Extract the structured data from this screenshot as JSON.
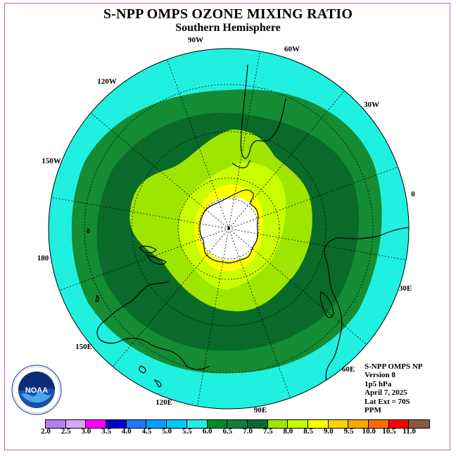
{
  "title": "S-NPP OMPS OZONE MIXING RATIO",
  "subtitle": "Southern Hemisphere",
  "longitude_labels": {
    "lon_90w": "90W",
    "lon_60w": "60W",
    "lon_30w": "30W",
    "lon_0": "0",
    "lon_30e": "30E",
    "lon_60e": "60E",
    "lon_90e": "90E",
    "lon_120e": "120E",
    "lon_150e": "150E",
    "lon_180": "180",
    "lon_150w": "150W",
    "lon_120w": "120W"
  },
  "info": {
    "instrument": "S-NPP OMPS NP",
    "version": "Version 8",
    "level": "1p5 hPa",
    "date": "April 7, 2025",
    "lat_ext": "Lat Ext = 70S",
    "units": "PPM"
  },
  "logo": {
    "text": "NOAA",
    "icon": "noaa-logo-icon"
  },
  "colorbar": {
    "colors": [
      "#b67ef2",
      "#d9a6f5",
      "#ff00ff",
      "#0000cd",
      "#1e78ff",
      "#00a0ff",
      "#00c8ff",
      "#20f0e0",
      "#008c2a",
      "#117f3a",
      "#0a6a2a",
      "#9ee600",
      "#c8ff00",
      "#ffff00",
      "#ffd200",
      "#ffa500",
      "#ff6a00",
      "#ff0000",
      "#8b5a3c"
    ],
    "labels": [
      "2.0",
      "2.5",
      "3.0",
      "3.5",
      "4.0",
      "4.5",
      "5.0",
      "5.5",
      "6.0",
      "6.5",
      "7.0",
      "7.5",
      "8.0",
      "8.5",
      "9.0",
      "9.5",
      "10.0",
      "10.5",
      "11.0"
    ]
  },
  "ozone_bands": [
    {
      "range": "5.5-6.0",
      "color": "#20f0e0"
    },
    {
      "range": "6.0-6.5",
      "color": "#138c33"
    },
    {
      "range": "6.5-7.0",
      "color": "#0a6a2a"
    },
    {
      "range": "7.0-7.5",
      "color": "#9ee600"
    },
    {
      "range": "7.5-8.0",
      "color": "#c8ff00"
    },
    {
      "range": "8.0-8.5",
      "color": "#ffff00"
    },
    {
      "range": "no data",
      "color": "#ffffff"
    }
  ]
}
